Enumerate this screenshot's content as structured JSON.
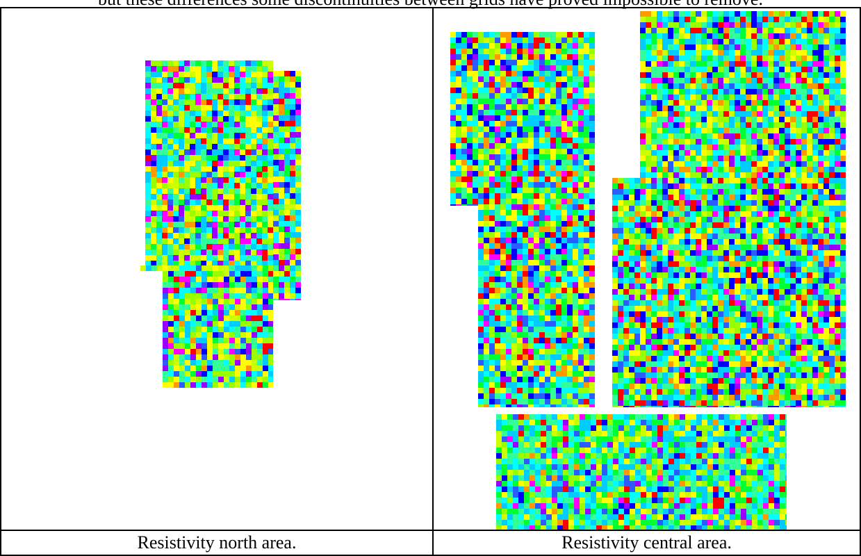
{
  "document": {
    "intro_text": "but these differences some discontinuities between grids have proved impossible to remove."
  },
  "figures": [
    {
      "caption": "Resistivity north area."
    },
    {
      "caption": "Resistivity central area."
    }
  ],
  "palette": [
    "#0000ff",
    "#2a5cff",
    "#00ccff",
    "#00ffff",
    "#33ff99",
    "#00ff33",
    "#99ff00",
    "#ccff00",
    "#ffff00",
    "#ff9900",
    "#ff0000",
    "#ff00ff",
    "#9900ff"
  ]
}
